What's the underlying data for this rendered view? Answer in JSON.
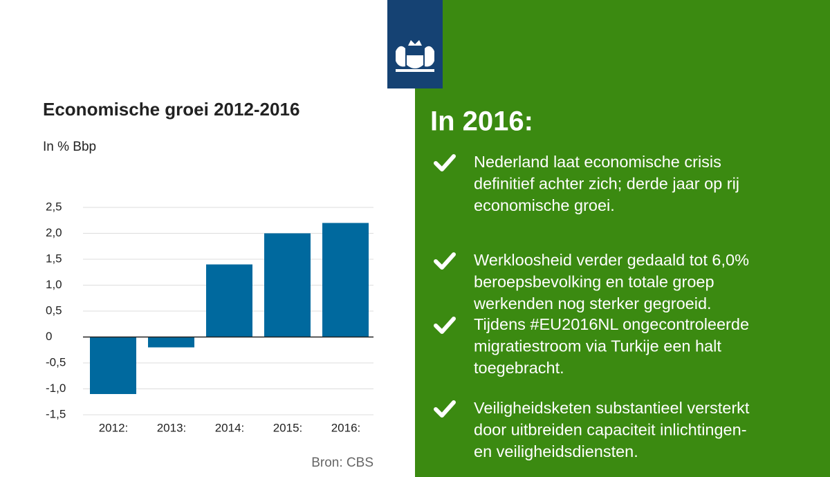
{
  "chart_data": {
    "type": "bar",
    "title": "Economische groei 2012-2016",
    "subtitle": "In % Bbp",
    "categories": [
      "2012:",
      "2013:",
      "2014:",
      "2015:",
      "2016:"
    ],
    "values": [
      -1.1,
      -0.2,
      1.4,
      2.0,
      2.2
    ],
    "color": "#00699e",
    "ylim": [
      -1.5,
      2.5
    ],
    "yticks": [
      {
        "value": -1.5,
        "label": "-1,5"
      },
      {
        "value": -1.0,
        "label": "-1,0"
      },
      {
        "value": -0.5,
        "label": "-0,5"
      },
      0,
      {
        "value": 0.5,
        "label": "0,5"
      },
      {
        "value": 1.0,
        "label": "1,0"
      },
      {
        "value": 1.5,
        "label": "1,5"
      },
      {
        "value": 2.0,
        "label": "2,0"
      },
      {
        "value": 2.5,
        "label": "2,5"
      }
    ],
    "grid": true,
    "source": "Bron: CBS"
  },
  "panel": {
    "heading": "In 2016:",
    "items": [
      {
        "lines": [
          "Nederland laat economische crisis",
          "definitief achter zich; derde jaar op rij",
          "economische groei."
        ]
      },
      {
        "lines": [
          "Werkloosheid verder gedaald tot 6,0%",
          "beroepsbevolking en totale groep",
          "werkenden nog sterker gegroeid."
        ]
      },
      {
        "lines": [
          "Tijdens #EU2016NL ongecontroleerde",
          "migratiestroom via Turkije een halt",
          "toegebracht."
        ]
      },
      {
        "lines": [
          "Veiligheidsketen substantieel versterkt",
          "door uitbreiden capaciteit inlichtingen-",
          "en veiligheidsdiensten."
        ]
      }
    ]
  }
}
